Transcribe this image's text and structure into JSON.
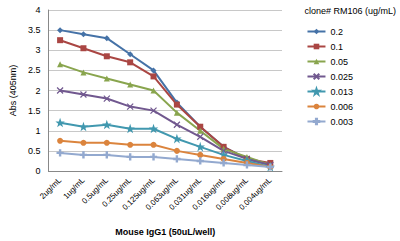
{
  "chart_data": {
    "type": "line",
    "x_label": "Mouse IgG1 (50uL/well)",
    "y_label": "Abs (405nm)",
    "legend_title": "clone# RM106 (ug/mL)",
    "categories": [
      "2ug/mL",
      "1ug/mL",
      "0.5ug/mL",
      "0.25ug/mL",
      "0.125ug/mL",
      "0.063ug/mL",
      "0.031ug/mL",
      "0.016ug/mL",
      "0.008ug/mL",
      "0.004ug/mL"
    ],
    "series": [
      {
        "name": "0.2",
        "color": "#4572A7",
        "marker": "diamond",
        "values": [
          3.5,
          3.4,
          3.3,
          2.9,
          2.5,
          1.7,
          1.1,
          0.6,
          0.3,
          0.15
        ]
      },
      {
        "name": "0.1",
        "color": "#AA4643",
        "marker": "square",
        "values": [
          3.25,
          3.05,
          2.85,
          2.7,
          2.35,
          1.65,
          1.1,
          0.6,
          0.3,
          0.2
        ]
      },
      {
        "name": "0.05",
        "color": "#89A54E",
        "marker": "triangle",
        "values": [
          2.65,
          2.45,
          2.3,
          2.15,
          2.0,
          1.45,
          1.0,
          0.55,
          0.35,
          0.15
        ]
      },
      {
        "name": "0.025",
        "color": "#71588F",
        "marker": "x",
        "values": [
          2.0,
          1.9,
          1.8,
          1.6,
          1.5,
          1.15,
          0.85,
          0.5,
          0.3,
          0.15
        ]
      },
      {
        "name": "0.013",
        "color": "#4198AF",
        "marker": "star",
        "values": [
          1.2,
          1.1,
          1.15,
          1.05,
          1.05,
          0.8,
          0.6,
          0.4,
          0.25,
          0.1
        ]
      },
      {
        "name": "0.006",
        "color": "#DB843D",
        "marker": "circle",
        "values": [
          0.75,
          0.7,
          0.7,
          0.65,
          0.65,
          0.5,
          0.4,
          0.3,
          0.2,
          0.1
        ]
      },
      {
        "name": "0.003",
        "color": "#93A9CF",
        "marker": "plus",
        "values": [
          0.45,
          0.4,
          0.4,
          0.35,
          0.35,
          0.3,
          0.25,
          0.2,
          0.15,
          0.1
        ]
      }
    ],
    "ylim": [
      0,
      4
    ],
    "yticks": [
      0,
      0.5,
      1,
      1.5,
      2,
      2.5,
      3,
      3.5,
      4
    ],
    "grid": true,
    "legend": "right"
  }
}
